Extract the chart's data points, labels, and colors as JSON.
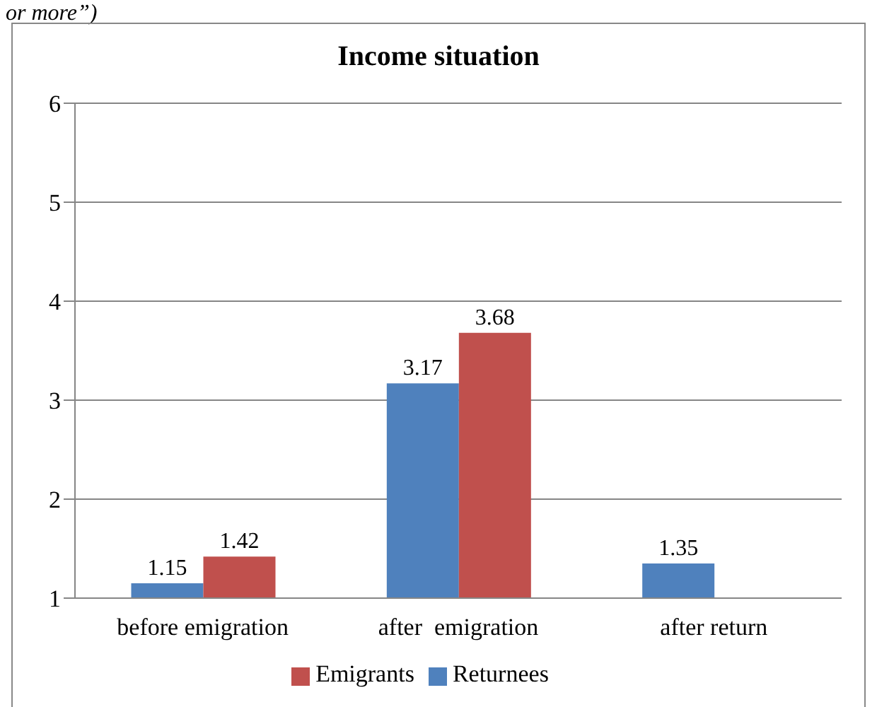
{
  "chart_data": {
    "type": "bar",
    "title": "Income situation",
    "annotations": [
      "or more”)"
    ],
    "categories": [
      "before emigration",
      "after  emigration",
      "after return"
    ],
    "series": [
      {
        "name": "Returnees",
        "color": "#4f81bd",
        "values": [
          1.15,
          3.17,
          1.35
        ]
      },
      {
        "name": "Emigrants",
        "color": "#c0504d",
        "values": [
          1.42,
          3.68,
          null
        ]
      }
    ],
    "ylim": [
      1,
      6
    ],
    "yticks": [
      1,
      2,
      3,
      4,
      5,
      6
    ],
    "grid": "y",
    "legend": "bottom",
    "data_labels": true
  }
}
